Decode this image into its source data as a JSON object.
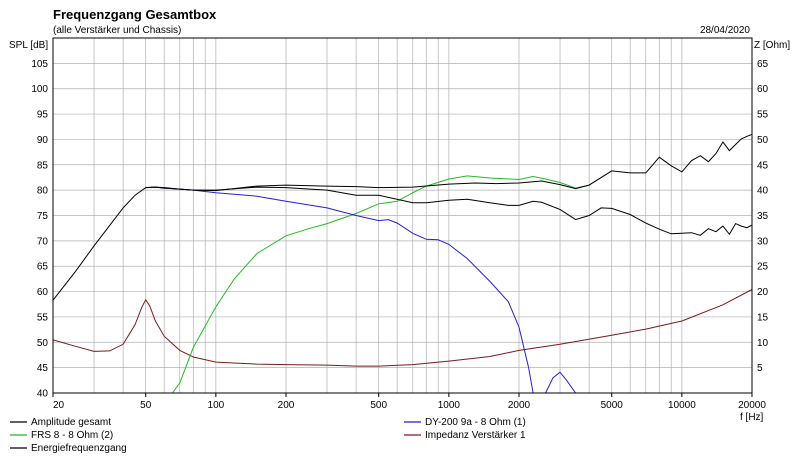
{
  "chart_data": {
    "type": "line",
    "title": "Frequenzgang Gesamtbox",
    "subtitle": "(alle Verstärker und Chassis)",
    "date": "28/04/2020",
    "ylabel_left": "SPL [dB]",
    "ylabel_right": "Z [Ohm]",
    "xlabel": "f [Hz]",
    "x_scale": "log",
    "xlim": [
      20,
      20000
    ],
    "ylim_left": [
      40,
      110
    ],
    "ylim_right": [
      0,
      70
    ],
    "grid": true,
    "x_ticks": [
      {
        "value": 20,
        "label": "20"
      },
      {
        "value": 50,
        "label": "50"
      },
      {
        "value": 100,
        "label": "100"
      },
      {
        "value": 200,
        "label": "200"
      },
      {
        "value": 500,
        "label": "500"
      },
      {
        "value": 1000,
        "label": "1000"
      },
      {
        "value": 2000,
        "label": "2000"
      },
      {
        "value": 5000,
        "label": "5000"
      },
      {
        "value": 10000,
        "label": "10000"
      },
      {
        "value": 20000,
        "label": "20000"
      }
    ],
    "y_ticks_left": [
      "40",
      "45",
      "50",
      "55",
      "60",
      "65",
      "70",
      "75",
      "80",
      "85",
      "90",
      "95",
      "100",
      "105"
    ],
    "y_ticks_right": [
      "5",
      "10",
      "15",
      "20",
      "25",
      "30",
      "35",
      "40",
      "45",
      "50",
      "55",
      "60",
      "65"
    ],
    "series": [
      {
        "name": "Amplitude gesamt",
        "axis": "left",
        "color": "#000000",
        "x": [
          20,
          25,
          30,
          35,
          40,
          45,
          50,
          55,
          60,
          70,
          80,
          100,
          150,
          200,
          300,
          400,
          500,
          700,
          1000,
          1300,
          1600,
          2000,
          2500,
          3000,
          3500,
          4000,
          5000,
          6000,
          7000,
          8000,
          9000,
          10000,
          11000,
          12000,
          13000,
          14000,
          15000,
          16000,
          17000,
          18000,
          19000,
          20000
        ],
        "values": [
          58.3,
          64,
          69,
          73,
          76.5,
          79,
          80.5,
          80.6,
          80.5,
          80.2,
          80,
          79.9,
          80.8,
          81,
          80.8,
          80.7,
          80.5,
          80.6,
          81.2,
          81.4,
          81.3,
          81.4,
          81.8,
          81.1,
          80.3,
          81,
          83.8,
          83.4,
          83.4,
          86.5,
          84.8,
          83.6,
          85.8,
          86.8,
          85.6,
          87.2,
          89.5,
          87.8,
          89,
          90.1,
          90.6,
          91
        ]
      },
      {
        "name": "FRS 8 - 8 Ohm (2)",
        "axis": "left",
        "color": "#22bb22",
        "x": [
          20,
          50,
          65,
          70,
          80,
          100,
          120,
          150,
          200,
          250,
          300,
          400,
          500,
          600,
          700,
          800,
          1000,
          1200,
          1500,
          2000,
          2300,
          2600,
          3000,
          3500,
          4000
        ],
        "values": [
          40,
          40,
          40,
          42,
          49,
          57,
          62.5,
          67.5,
          71,
          72.4,
          73.4,
          75.4,
          77.3,
          77.8,
          79.5,
          80.8,
          82.2,
          82.8,
          82.4,
          82.1,
          82.7,
          82.2,
          81.5,
          80.4,
          81
        ]
      },
      {
        "name": "Energiefrequenzgang",
        "axis": "left",
        "color": "#000000",
        "x": [
          50,
          55,
          60,
          70,
          80,
          100,
          150,
          200,
          300,
          400,
          500,
          700,
          800,
          1000,
          1200,
          1500,
          1800,
          2000,
          2300,
          2500,
          3000,
          3500,
          4000,
          4500,
          5000,
          6000,
          7000,
          8000,
          9000,
          10000,
          11000,
          12000,
          13000,
          14000,
          15000,
          16000,
          17000,
          18000,
          19000,
          20000
        ],
        "values": [
          80.5,
          80.6,
          80.4,
          80.2,
          80,
          80,
          80.6,
          80.5,
          80,
          79,
          79,
          77.5,
          77.5,
          78,
          78.2,
          77.5,
          77,
          77,
          77.8,
          77.6,
          76.2,
          74.2,
          75,
          76.5,
          76.4,
          75.2,
          73.5,
          72.3,
          71.4,
          71.5,
          71.6,
          71.1,
          72.4,
          71.8,
          72.9,
          71.3,
          73.4,
          72.9,
          72.6,
          73.1
        ]
      },
      {
        "name": "DY-200 9a - 8 Ohm   (1)",
        "axis": "left",
        "color": "#2222cc",
        "x": [
          50,
          55,
          60,
          70,
          80,
          100,
          150,
          200,
          300,
          400,
          500,
          550,
          600,
          700,
          800,
          900,
          1000,
          1200,
          1500,
          1800,
          2000,
          2200,
          2300,
          2400,
          2600,
          2800,
          3000,
          3200,
          3500,
          20000
        ],
        "values": [
          80.5,
          80.6,
          80.4,
          80.2,
          80,
          79.5,
          78.8,
          77.8,
          76.5,
          75,
          74,
          74.2,
          73.5,
          71.5,
          70.3,
          70.2,
          69.3,
          66.5,
          62,
          58,
          53,
          45,
          40,
          40,
          40,
          43,
          44.1,
          42.5,
          40,
          40
        ]
      },
      {
        "name": "Impedanz Verstärker 1",
        "axis": "right",
        "color": "#7a1a1a",
        "x": [
          20,
          25,
          30,
          35,
          40,
          45,
          48,
          50,
          52,
          55,
          60,
          70,
          80,
          100,
          150,
          200,
          300,
          400,
          500,
          700,
          1000,
          1500,
          2000,
          3000,
          5000,
          7000,
          10000,
          15000,
          20000
        ],
        "values": [
          10.5,
          9.2,
          8.2,
          8.3,
          9.6,
          13.5,
          16.8,
          18.4,
          17.2,
          14.2,
          11.2,
          8.4,
          7.1,
          6.1,
          5.7,
          5.6,
          5.5,
          5.3,
          5.3,
          5.6,
          6.3,
          7.2,
          8.4,
          9.6,
          11.4,
          12.6,
          14.2,
          17.4,
          20.4
        ]
      }
    ]
  }
}
